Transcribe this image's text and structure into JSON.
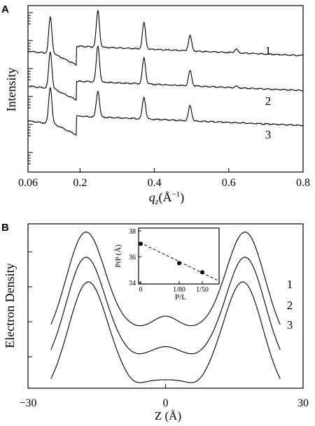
{
  "chart_data": [
    {
      "panel_label": "A",
      "type": "line",
      "xlabel_main": "q",
      "xlabel_sub": "z",
      "xlabel_unit": "(Å",
      "xlabel_exp": "−1",
      "xlabel_close": ")",
      "ylabel": "Intensity",
      "xlim": [
        0.06,
        0.8
      ],
      "xticks": [
        0.06,
        0.2,
        0.4,
        0.6,
        0.8
      ],
      "xtick_labels": [
        "0.06",
        "0.2",
        "0.4",
        "0.6",
        "0.8"
      ],
      "y_log_scale": true,
      "peak_positions": [
        0.12,
        0.248,
        0.372,
        0.496,
        0.62
      ],
      "series": [
        {
          "name": "1",
          "baseline_step_at": 0.19,
          "peak_heights": [
            1.0,
            1.0,
            0.72,
            0.42,
            0.1
          ]
        },
        {
          "name": "2",
          "baseline_step_at": 0.19,
          "peak_heights": [
            1.0,
            1.0,
            0.72,
            0.42,
            0.04
          ]
        },
        {
          "name": "3",
          "baseline_step_at": 0.19,
          "peak_heights": [
            1.0,
            0.72,
            0.6,
            0.42,
            0.0
          ]
        }
      ]
    },
    {
      "panel_label": "B",
      "type": "line",
      "xlabel": "Z (Å)",
      "ylabel": "Electron Density",
      "xlim": [
        -30,
        30
      ],
      "xticks": [
        -30,
        0,
        30
      ],
      "xtick_labels": [
        "−30",
        "0",
        "30"
      ],
      "series": [
        {
          "name": "1",
          "peak_position": 17.5,
          "profile": "bilayer"
        },
        {
          "name": "2",
          "peak_position": 17.5,
          "profile": "bilayer"
        },
        {
          "name": "3",
          "peak_position": 17.0,
          "profile": "bilayer"
        }
      ],
      "inset": {
        "type": "scatter",
        "xlabel": "P/L",
        "ylabel": "PtP (Å)",
        "ylim": [
          34,
          38
        ],
        "yticks": [
          34,
          36,
          38
        ],
        "xtick_labels": [
          "0",
          "1/80",
          "1/50"
        ],
        "x": [
          0,
          0.0125,
          0.02
        ],
        "y": [
          37.0,
          35.5,
          34.8
        ],
        "fit_line": "dashed"
      }
    }
  ]
}
